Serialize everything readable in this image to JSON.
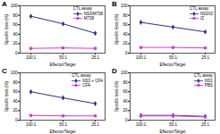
{
  "chart_data": [
    {
      "type": "line",
      "title": "A",
      "subtitle": "CTL assay",
      "x_label": "Effector/Target",
      "y_label": "Specific lysis (%)",
      "categories": [
        "100:1",
        "50:1",
        "25:1"
      ],
      "ylim": [
        0,
        100
      ],
      "yticks": [
        0,
        20,
        40,
        60,
        80,
        100
      ],
      "legend": "top-right",
      "series": [
        {
          "name": "NS3/M738",
          "color": "#2b2f86",
          "marker": "diamond",
          "values": [
            78,
            62,
            42
          ]
        },
        {
          "name": "M738",
          "color": "#d13ad1",
          "marker": "square",
          "values": [
            10,
            11,
            10
          ]
        }
      ]
    },
    {
      "type": "line",
      "title": "B",
      "subtitle": "CTL assay",
      "x_label": "Effector/Target",
      "y_label": "Specific lysis (%)",
      "categories": [
        "100:1",
        "50:1",
        "25:1"
      ],
      "ylim": [
        0,
        100
      ],
      "yticks": [
        0,
        20,
        40,
        60,
        80,
        100
      ],
      "legend": "top-right",
      "series": [
        {
          "name": "NS3/IZ",
          "color": "#2b2f86",
          "marker": "diamond",
          "values": [
            65,
            55,
            45
          ]
        },
        {
          "name": "IZ",
          "color": "#d13ad1",
          "marker": "square",
          "values": [
            12,
            12,
            11
          ]
        }
      ]
    },
    {
      "type": "line",
      "title": "C",
      "subtitle": "CTL assay",
      "x_label": "Effector/Target",
      "y_label": "Specific lysis (%)",
      "categories": [
        "100:1",
        "50:1",
        "25:1"
      ],
      "ylim": [
        0,
        100
      ],
      "yticks": [
        0,
        20,
        40,
        60,
        80,
        100
      ],
      "legend": "top-right",
      "series": [
        {
          "name": "NS3 + CFA",
          "color": "#2b2f86",
          "marker": "diamond",
          "values": [
            60,
            47,
            35
          ]
        },
        {
          "name": "CFA",
          "color": "#d13ad1",
          "marker": "square",
          "values": [
            10,
            9,
            9
          ]
        }
      ]
    },
    {
      "type": "line",
      "title": "D",
      "subtitle": "CTL assay",
      "x_label": "Effector/Target",
      "y_label": "Specific lysis (%)",
      "categories": [
        "100:1",
        "50:1",
        "25:1"
      ],
      "ylim": [
        0,
        100
      ],
      "yticks": [
        0,
        20,
        40,
        60,
        80,
        100
      ],
      "legend": "top-right",
      "series": [
        {
          "name": "NS3",
          "color": "#2b2f86",
          "marker": "diamond",
          "values": [
            10,
            10,
            8
          ]
        },
        {
          "name": "PBS",
          "color": "#d13ad1",
          "marker": "square",
          "values": [
            9,
            9,
            7
          ]
        }
      ]
    }
  ]
}
